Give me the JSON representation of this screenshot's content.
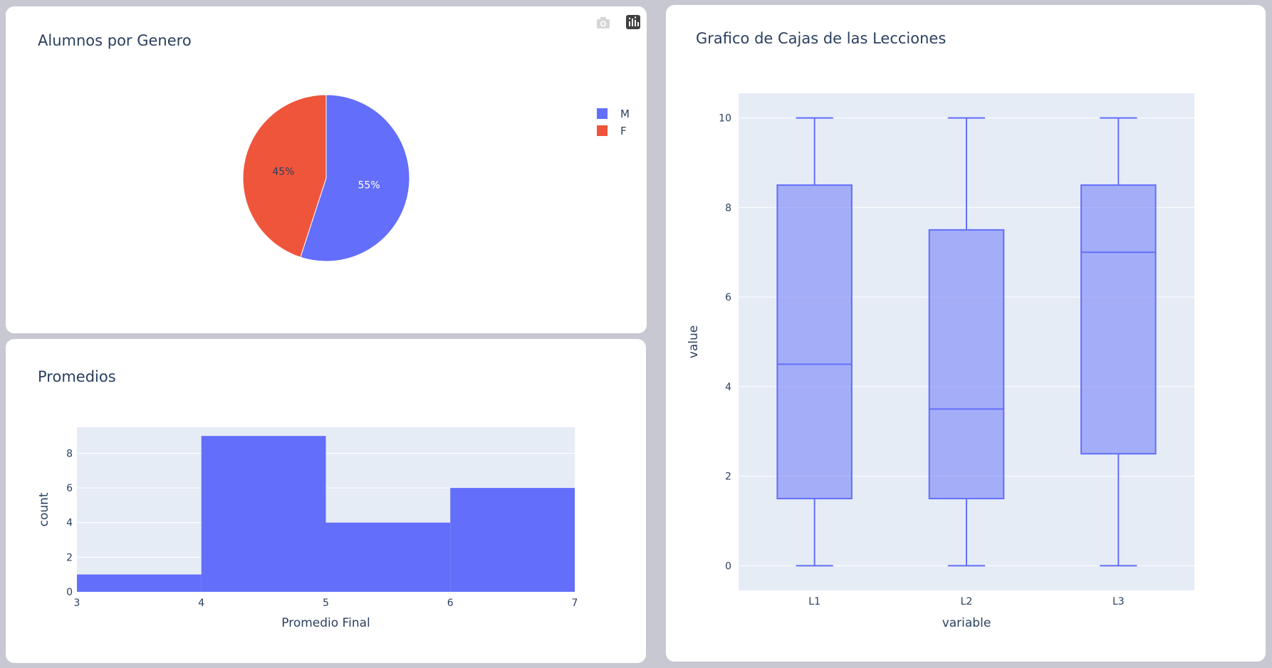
{
  "colors": {
    "primary": "#636efa",
    "secondary": "#ef553b",
    "plot_bg": "#e5ecf6",
    "text": "#2a3f5f"
  },
  "modebar": {
    "camera_icon": "camera-icon",
    "plotly_icon": "plotly-logo-icon"
  },
  "chart_data": [
    {
      "type": "pie",
      "title": "Alumnos por Genero",
      "labels": [
        "M",
        "F"
      ],
      "values": [
        55,
        45
      ],
      "value_labels": [
        "55%",
        "45%"
      ],
      "colors": [
        "#636efa",
        "#ef553b"
      ],
      "legend": "right"
    },
    {
      "type": "bar",
      "title": "Promedios",
      "xlabel": "Promedio Final",
      "ylabel": "count",
      "bins": [
        [
          3,
          4
        ],
        [
          4,
          5
        ],
        [
          5,
          6
        ],
        [
          6,
          7
        ]
      ],
      "values": [
        1,
        9,
        4,
        6
      ],
      "xlim": [
        3,
        7
      ],
      "ylim": [
        0,
        9.5
      ],
      "xticks": [
        3,
        4,
        5,
        6,
        7
      ],
      "yticks": [
        0,
        2,
        4,
        6,
        8
      ],
      "grid": true
    },
    {
      "type": "box",
      "title": "Grafico de Cajas de las Lecciones",
      "xlabel": "variable",
      "ylabel": "value",
      "categories": [
        "L1",
        "L2",
        "L3"
      ],
      "boxes": [
        {
          "min": 0,
          "q1": 1.5,
          "median": 4.5,
          "q3": 8.5,
          "max": 10
        },
        {
          "min": 0,
          "q1": 1.5,
          "median": 3.5,
          "q3": 7.5,
          "max": 10
        },
        {
          "min": 0,
          "q1": 2.5,
          "median": 7,
          "q3": 8.5,
          "max": 10
        }
      ],
      "ylim": [
        -0.55,
        10.55
      ],
      "yticks": [
        0,
        2,
        4,
        6,
        8,
        10
      ],
      "grid": true
    }
  ]
}
